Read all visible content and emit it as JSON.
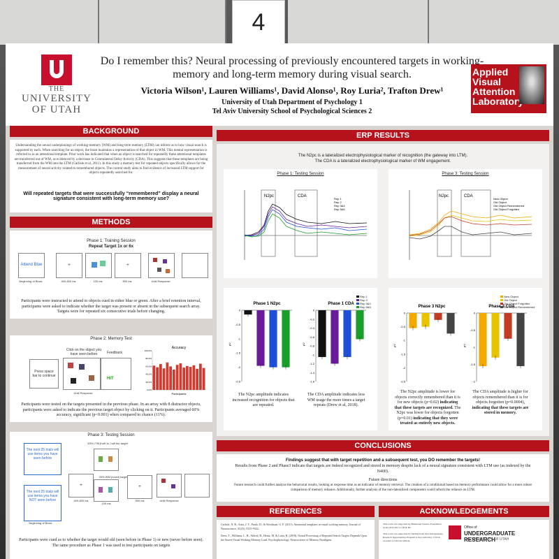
{
  "sign_number": "4",
  "header": {
    "university": {
      "the": "THE",
      "line1": "UNIVERSITY",
      "line2": "OF UTAH"
    },
    "title": "Do I remember this? Neural processing of previously encountered targets in working-memory and long-term memory during visual search.",
    "authors": "Victoria Wilson¹, Lauren Williams¹, David Alonso¹, Roy Luria², Trafton Drew¹",
    "affiliation1": "University of Utah Department of Psychology 1",
    "affiliation2": "Tel Aviv University School of Psychological Sciences 2",
    "lab_name": [
      "pplied",
      "isual",
      "ttention",
      "aboratory"
    ],
    "lab_initials": [
      "A",
      "V",
      "A",
      "L"
    ]
  },
  "background": {
    "heading": "BACKGROUND",
    "body": "Understanding the neural underpinnings of working-memory (WM) and long-term memory (LTM) can inform us to how visual search is supported by each. When searching for an object, the brain maintains a representation of that object in WM. This mental representation is referred to as an attentional template. Prior work has indicated that when an object is searched for repeatedly these attentional templates are transferred out of WM, as evidenced by a decrease in Contralateral Delay Activity (CDA). This suggests that these templates are being transferred from the WM into the LTM (Carlisle et al, 2011). In this study a memory test for repeated objects specifically allows for the measurement of neural activity related to remembered objects. The current study aims to find evidence of increased LTM support for objects repeatedly searched for.",
    "question": "Will repeated targets that were successfully “remembered” display a neural signature consistent with long-term memory use?"
  },
  "methods": {
    "heading": "METHODS",
    "phase1": {
      "title": "Phase 1: Training Session",
      "subtitle": "Repeat Target 1x or 6x",
      "cue": "Attend Blue",
      "labels": [
        "Beginning of Block",
        "400-600 ms",
        "100 ms",
        "900 ms",
        "Until Response"
      ],
      "caption": "Participants were instructed to attend to objects cued in either blue or green. After a brief retention interval, participants were asked to indicate whether the target was present or absent in the subsequent search array. Targets were for repeated six consecutive trials before changing."
    },
    "phase2": {
      "title": "Phase 2: Memory Test",
      "prompt": "Click on the object you have seen before",
      "feedback": "Feedback",
      "hit": "HIT",
      "start": "Press space bar to continue",
      "response": "Until Response",
      "chart_title": "Accuracy",
      "chart_xlabel": "Participants",
      "caption": "Participants were tested on the targets presented in the previous phase. In an array with 8 distractor objects, participants were asked to indicate the previous target object by clicking on it. Participants averaged 60% accuracy, significant (p<0.001) when compared to chance (11%)."
    },
    "phase3": {
      "title": "Phase 3: Testing Session",
      "label_old": "33% LTM (half 1x, half 6x) target",
      "label_new": "33% WM (novel) target",
      "box1": "The next 25 trials will use items you have seen before",
      "box2": "The next 25 trials will use items you have NOT seen before",
      "labels": [
        "Beginning of Block",
        "400-600 ms",
        "100 ms",
        "900 ms",
        "Until Response"
      ],
      "caption": "Participants were cued as to whether the target would old (seen before in Phase 1) or new (never before seen). The same procedure as Phase 1 was used to test participants on targets"
    }
  },
  "erp": {
    "heading": "ERP RESULTS",
    "intro1": "The N2pc is a lateralized electrophysiological marker of recognition (the gateway into LTM).",
    "intro2": "The CDA is a lateralized electrophysiological marker of WM engagement.",
    "wave1_title": "Phase 1: Testing Session",
    "wave3_title": "Phase 3: Testing Session",
    "n2pc": "N2pc",
    "cda": "CDA",
    "wave1_legend": [
      "Rep 1",
      "Rep 2",
      "Rep 3&4",
      "Rep 5&6"
    ],
    "wave3_legend": [
      "New Object",
      "Old Object",
      "Old Object Remembered",
      "Old Object Forgotten"
    ],
    "bar1_title": "Phase 1 N2pc",
    "bar2_title": "Phase 1 CDA",
    "bar3_title": "Phase 3 N2pc",
    "bar4_title": "Phase 3 CDA",
    "bar_legend1": [
      "Rep 1",
      "Rep 2",
      "Rep 3&4",
      "Rep 5&6"
    ],
    "bar_legend3": [
      "New Object",
      "Old Object",
      "Old Object Forgotten",
      "Old Object Remembered"
    ],
    "cap1": "The N2pc amplitude indicates increased recognition for objects that are repeated.",
    "cap2": "The CDA amplitude indicates less WM usage the more times a target repeats (Drew et al, 2018).",
    "cap3a": "The N2pc amplitude is lower for objects correctly remembered than it is for new objects (p=0.02)",
    "cap3b": "indicating that these targets are recognized.",
    "cap3c": "The N2pc was lower for objects forgotten (p=0.01)",
    "cap3d": "indicating that they were treated as entirely new objects.",
    "cap4a": "The CDA amplitude is higher for objects remembered than it is for objects forgotten (p=0.0004),",
    "cap4b": "indicating that these targets are stored in memory."
  },
  "conclusions": {
    "heading": "CONCLUSIONS",
    "headline": "Findings suggest that with target repetition and a subsequent test, you DO remember the targets!",
    "body": "Results from Phase 2 and Phase3 indicate that targets are indeed recognized and stored in memory despite lack of a neural signature consistent with LTM use (as indexed by the N400).",
    "future_title": "Future directions",
    "future": "Future research could further analyze the behavioral results, looking at response time as an indicator of memory retrieval. The creation of a conditional based on memory performance could allow for a more robust comparison of memory reliance. Additionally, further analysis of the non-lateralized components could inform the reliance on LTM."
  },
  "references": {
    "heading": "REFERENCES",
    "ref1": "Carlisle, N. B., Arita, J. T., Pardo, D., & Woodman, G. F. (2011). Attentional templates in visual working memory. Journal of Neuroscience, 31(25), 9315-9322.",
    "ref2": "Drew, T., Williams, L. H., Aldred, B., Heinz, M. & Luria, R. (2018). Neural Processing of Repeated Search Targets Depends Upon the Stored Visual Working Memory Load. Psychophysiology. Neuroscience of Memory Paradigms."
  },
  "acknowledgements": {
    "heading": "ACKNOWLEDGEMENTS",
    "text1": "This work was supported by Binational Science Foundation Grant 2015/301 to TD & RL.",
    "text2": "This work was supported by funding from the Undergraduate Research Opportunities Program at the University of Utah awarded to Victoria Wilson.",
    "office1": "Office of",
    "office2": "UNDERGRADUATE RESEARCH",
    "office3": "THE UNIVERSITY OF UTAH"
  },
  "chart_data": [
    {
      "type": "bar",
      "title": "Accuracy",
      "xlabel": "Participants",
      "ylabel": "",
      "ylim": [
        0,
        100
      ],
      "ticks": [
        "0.0%",
        "10.0%",
        "20.0%",
        "30.0%",
        "40.0%",
        "50.0%",
        "60.0%",
        "70.0%",
        "80.0%",
        "90.0%",
        "100.0%"
      ],
      "values": [
        62,
        58,
        66,
        55,
        70,
        60,
        52,
        64,
        68,
        57,
        61,
        59,
        63,
        54,
        67,
        56
      ]
    },
    {
      "type": "bar",
      "title": "Phase 1 N2pc",
      "ylabel": "µV",
      "ylim": [
        -2.5,
        0
      ],
      "ticks": [
        "0",
        "-0.5",
        "-1",
        "-1.5",
        "-2",
        "-2.5"
      ],
      "categories": [
        "Rep 1",
        "Rep 2",
        "Rep 3&4",
        "Rep 5&6"
      ],
      "values": [
        -0.15,
        -1.95,
        -2.0,
        -2.0
      ],
      "colors": [
        "#111111",
        "#6a1b9a",
        "#1e4fd8",
        "#1a9e2a"
      ]
    },
    {
      "type": "bar",
      "title": "Phase 1 CDA",
      "ylabel": "µV",
      "ylim": [
        -1.6,
        0
      ],
      "ticks": [
        "0",
        "-0.2",
        "-0.4",
        "-0.6",
        "-0.8",
        "-1",
        "-1.2",
        "-1.4",
        "-1.6"
      ],
      "categories": [
        "Rep 1",
        "Rep 2",
        "Rep 3&4",
        "Rep 5&6"
      ],
      "values": [
        -1.05,
        -1.2,
        -1.05,
        -0.65
      ],
      "colors": [
        "#111111",
        "#6a1b9a",
        "#1e4fd8",
        "#1a9e2a"
      ]
    },
    {
      "type": "bar",
      "title": "Phase 3 N2pc",
      "ylabel": "µV",
      "ylim": [
        -2.5,
        0
      ],
      "ticks": [
        "0",
        "-0.5",
        "-1",
        "-1.5",
        "-2",
        "-2.5"
      ],
      "categories": [
        "New Object",
        "Old Object",
        "Old Object Forgotten",
        "Old Object Remembered"
      ],
      "values": [
        -0.55,
        -0.5,
        -0.25,
        -0.75
      ],
      "colors": [
        "#f2a900",
        "#e8c400",
        "#c23b22",
        "#444444"
      ]
    },
    {
      "type": "bar",
      "title": "Phase 3 CDA",
      "ylabel": "µV",
      "ylim": [
        -2,
        0
      ],
      "ticks": [
        "0",
        "-0.5",
        "-1",
        "-1.5",
        "-2"
      ],
      "categories": [
        "New Object",
        "Old Object",
        "Old Object Forgotten",
        "Old Object Remembered"
      ],
      "values": [
        -1.55,
        -1.3,
        -0.75,
        -1.55
      ],
      "colors": [
        "#f2a900",
        "#e8c400",
        "#c23b22",
        "#444444"
      ]
    }
  ]
}
